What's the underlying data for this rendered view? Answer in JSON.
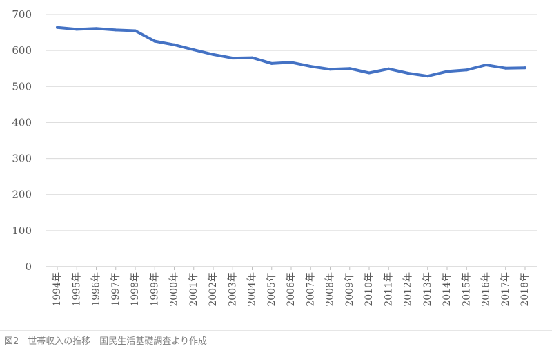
{
  "caption": "図2　世帯収入の推移　国民生活基礎調査より作成",
  "chart_data": {
    "type": "line",
    "title": "",
    "xlabel": "",
    "ylabel": "",
    "ylim": [
      0,
      700
    ],
    "yticks": [
      "0",
      "100",
      "200",
      "300",
      "400",
      "500",
      "600",
      "700"
    ],
    "grid": true,
    "legend": "none",
    "categories": [
      "1994年",
      "1995年",
      "1996年",
      "1997年",
      "1998年",
      "1999年",
      "2000年",
      "2001年",
      "2002年",
      "2003年",
      "2004年",
      "2005年",
      "2006年",
      "2007年",
      "2008年",
      "2009年",
      "2010年",
      "2011年",
      "2012年",
      "2013年",
      "2014年",
      "2015年",
      "2016年",
      "2017年",
      "2018年"
    ],
    "series": [
      {
        "color": "#4472c4",
        "values": [
          664,
          659,
          661,
          657,
          655,
          626,
          616,
          602,
          589,
          579,
          580,
          564,
          567,
          556,
          548,
          550,
          538,
          549,
          537,
          529,
          542,
          546,
          560,
          551,
          552
        ]
      }
    ]
  }
}
